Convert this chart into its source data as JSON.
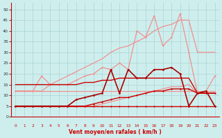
{
  "xlabel": "Vent moyen/en rafales ( km/h )",
  "x": [
    0,
    1,
    2,
    3,
    4,
    5,
    6,
    7,
    8,
    9,
    10,
    11,
    12,
    13,
    14,
    15,
    16,
    17,
    18,
    19,
    20,
    21,
    22,
    23
  ],
  "background_color": "#ceeeed",
  "grid_color": "#aad4d4",
  "line_pink_upper_y": [
    12,
    12,
    12,
    12,
    15,
    17,
    19,
    21,
    23,
    25,
    27,
    30,
    32,
    33,
    35,
    37,
    40,
    42,
    43,
    45,
    45,
    30,
    30,
    30
  ],
  "line_pink_upper_color": "#f09090",
  "line_pink_upper_lw": 0.9,
  "line_pink_spike_y": [
    12,
    12,
    12,
    19,
    15,
    15,
    15,
    17,
    19,
    20,
    23,
    22,
    25,
    22,
    40,
    37,
    47,
    33,
    37,
    48,
    30,
    11,
    12,
    19
  ],
  "line_pink_spike_color": "#f09090",
  "line_pink_spike_lw": 0.9,
  "line_pink_spike_marker": "D",
  "line_pink_flat_y": [
    12,
    12,
    12,
    12,
    12,
    12,
    12,
    12,
    12,
    12,
    12,
    12,
    12,
    12,
    12,
    12,
    12,
    12,
    12,
    12,
    12,
    12,
    12,
    12
  ],
  "line_pink_flat_color": "#f09090",
  "line_pink_flat_lw": 0.9,
  "line_pink_lower_y": [
    5,
    5,
    5,
    5,
    5,
    5,
    5,
    5,
    5,
    5,
    6,
    7,
    8,
    9,
    10,
    11,
    12,
    13,
    14,
    14,
    15,
    11,
    11,
    11
  ],
  "line_pink_lower_color": "#f09090",
  "line_pink_lower_lw": 0.9,
  "line_red_flat1_y": [
    5,
    5,
    5,
    5,
    5,
    5,
    5,
    5,
    5,
    5,
    5,
    5,
    5,
    5,
    5,
    5,
    5,
    5,
    5,
    5,
    5,
    5,
    5,
    5
  ],
  "line_red_flat1_color": "#cc0000",
  "line_red_flat1_lw": 1.0,
  "line_red_rise_y": [
    5,
    5,
    5,
    5,
    5,
    5,
    5,
    5,
    5,
    6,
    7,
    8,
    9,
    9,
    10,
    11,
    12,
    12,
    13,
    13,
    13,
    11,
    11,
    11
  ],
  "line_red_rise_color": "#cc0000",
  "line_red_rise_lw": 1.0,
  "line_red_upper_flat_y": [
    15,
    15,
    15,
    15,
    15,
    15,
    15,
    15,
    16,
    16,
    17,
    17,
    18,
    18,
    18,
    18,
    18,
    18,
    18,
    18,
    18,
    11,
    11,
    11
  ],
  "line_red_upper_flat_color": "#cc0000",
  "line_red_upper_flat_lw": 1.0,
  "line_red_spiky_y": [
    5,
    5,
    5,
    5,
    5,
    5,
    5,
    8,
    9,
    10,
    11,
    22,
    11,
    22,
    18,
    18,
    22,
    22,
    23,
    20,
    5,
    11,
    12,
    5
  ],
  "line_red_spiky_color": "#aa0000",
  "line_red_spiky_lw": 1.2,
  "line_red_spiky_marker": "D",
  "arrows_color": "#cc0000",
  "ylim": [
    0,
    53
  ],
  "xlim": [
    -0.5,
    23.5
  ],
  "yticks": [
    0,
    5,
    10,
    15,
    20,
    25,
    30,
    35,
    40,
    45,
    50
  ],
  "xticks": [
    0,
    1,
    2,
    3,
    4,
    5,
    6,
    7,
    8,
    9,
    10,
    11,
    12,
    13,
    14,
    15,
    16,
    17,
    18,
    19,
    20,
    21,
    22,
    23
  ]
}
